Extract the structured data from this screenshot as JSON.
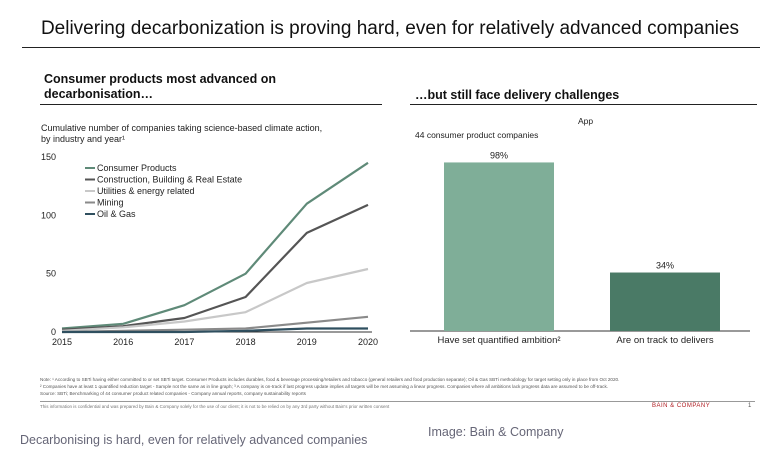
{
  "slide": {
    "title": "Delivering decarbonization is proving hard, even for relatively advanced companies",
    "left_panel_title": "Consumer products most advanced on decarbonisation…",
    "left_panel_title_line1": "Consumer products most advanced on",
    "left_panel_title_line2": "decarbonisation…",
    "right_panel_title": "…but still face delivery challenges",
    "note_lines": [
      "Note: ¹ According to SBTi having either committed to or set SBTi target. Consumer Products includes durables, food & beverage processing/retailers and tobacco (general retailers and food production separate); Oil & Gas SBTi methodology for target setting only in place from Oct 2020.",
      "² Companies have at least 1 quantified reduction target - Sample not the same as in line graph; ³ A company is on-track if last progress update implies all targets will be met assuming a linear progress. Companies where all ambitions lack progress data are assumed to be off-track.",
      "Source: SBTi; Benchmarking of 44 consumer product related companies - Company annual reports, company sustainability reports"
    ],
    "confidentiality": "This information is confidential and was prepared by Bain & Company solely for the use of our client; it is not to be relied on by any 3rd party without Bain's prior written consent",
    "brand": "BAIN & COMPANY",
    "page_number": "1"
  },
  "caption": "Decarbonising is hard, even for relatively advanced companies",
  "credit": "Image: Bain & Company",
  "chart_data": [
    {
      "type": "line",
      "subtitle_line1": "Cumulative number of companies taking science-based climate action,",
      "subtitle_line2": "by industry and year¹",
      "x": [
        2015,
        2016,
        2017,
        2018,
        2019,
        2020
      ],
      "x_ticks": [
        "2015",
        "2016",
        "2017",
        "2018",
        "2019",
        "2020"
      ],
      "y_ticks": [
        "0",
        "50",
        "100",
        "150"
      ],
      "ylim": [
        0,
        150
      ],
      "legend_position": "top-left",
      "series": [
        {
          "name": "Consumer Products",
          "color": "#5f8a78",
          "values": [
            3,
            7,
            23,
            50,
            110,
            145
          ]
        },
        {
          "name": "Construction, Building & Real Estate",
          "color": "#555555",
          "values": [
            2,
            5,
            12,
            30,
            85,
            109
          ]
        },
        {
          "name": "Utilities & energy related",
          "color": "#c8c8c8",
          "values": [
            1,
            4,
            9,
            17,
            42,
            54
          ]
        },
        {
          "name": "Mining",
          "color": "#8a8a8a",
          "values": [
            0,
            1,
            2,
            3,
            8,
            13
          ]
        },
        {
          "name": "Oil & Gas",
          "color": "#2f4f5f",
          "values": [
            0,
            0,
            0,
            1,
            3,
            3
          ]
        }
      ]
    },
    {
      "type": "bar",
      "title": "App",
      "subtitle": "44 consumer product companies",
      "categories": [
        "Have set quantified ambition²",
        "Are on track to delivers"
      ],
      "values": [
        98,
        34
      ],
      "value_labels": [
        "98%",
        "34%"
      ],
      "colors": [
        "#7fae98",
        "#4a7a66"
      ],
      "ylim": [
        0,
        100
      ]
    }
  ]
}
